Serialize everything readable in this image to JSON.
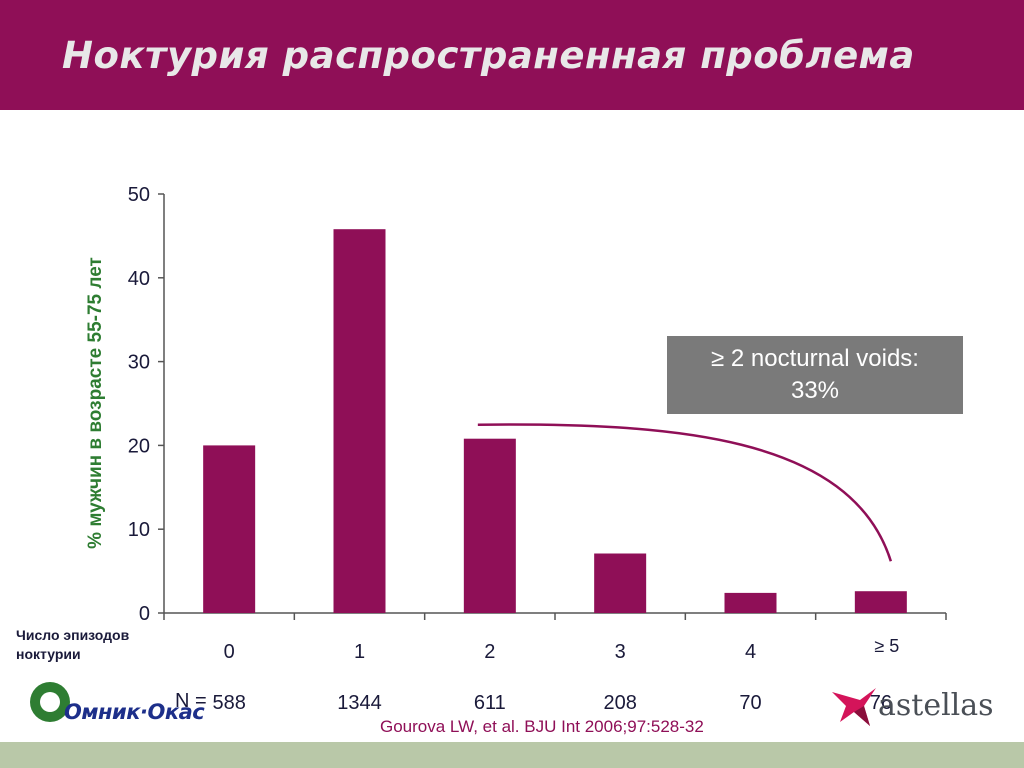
{
  "header": {
    "title": "Ноктурия распространенная проблема"
  },
  "chart_data": {
    "type": "bar",
    "ylabel": "% мужчин в возрасте 55-75 лет",
    "xlabel": "Число эпизодов ноктурии",
    "ylim": [
      0,
      50
    ],
    "yticks": [
      "0",
      "10",
      "20",
      "30",
      "40",
      "50"
    ],
    "categories": [
      "0",
      "1",
      "2",
      "3",
      "4",
      "≥ 5"
    ],
    "values": [
      20,
      45.8,
      20.8,
      7.1,
      2.4,
      2.6
    ],
    "n_label": "N =",
    "n_values": [
      "588",
      "1344",
      "611",
      "208",
      "70",
      "76"
    ],
    "annotation": {
      "line1": "≥ 2 nocturnal voids:",
      "line2": "33%"
    },
    "colors": {
      "bar": "#8f0f57",
      "axis": "#555555",
      "annotation_bg": "#7a7a7a"
    }
  },
  "citation": "Gourova LW, et al. BJU Int 2006;97:528-32",
  "logos": {
    "left": {
      "name": "omnik-okas-logo",
      "text": "Омник·Окас"
    },
    "right": {
      "name": "astellas-logo",
      "text": "astellas"
    }
  }
}
